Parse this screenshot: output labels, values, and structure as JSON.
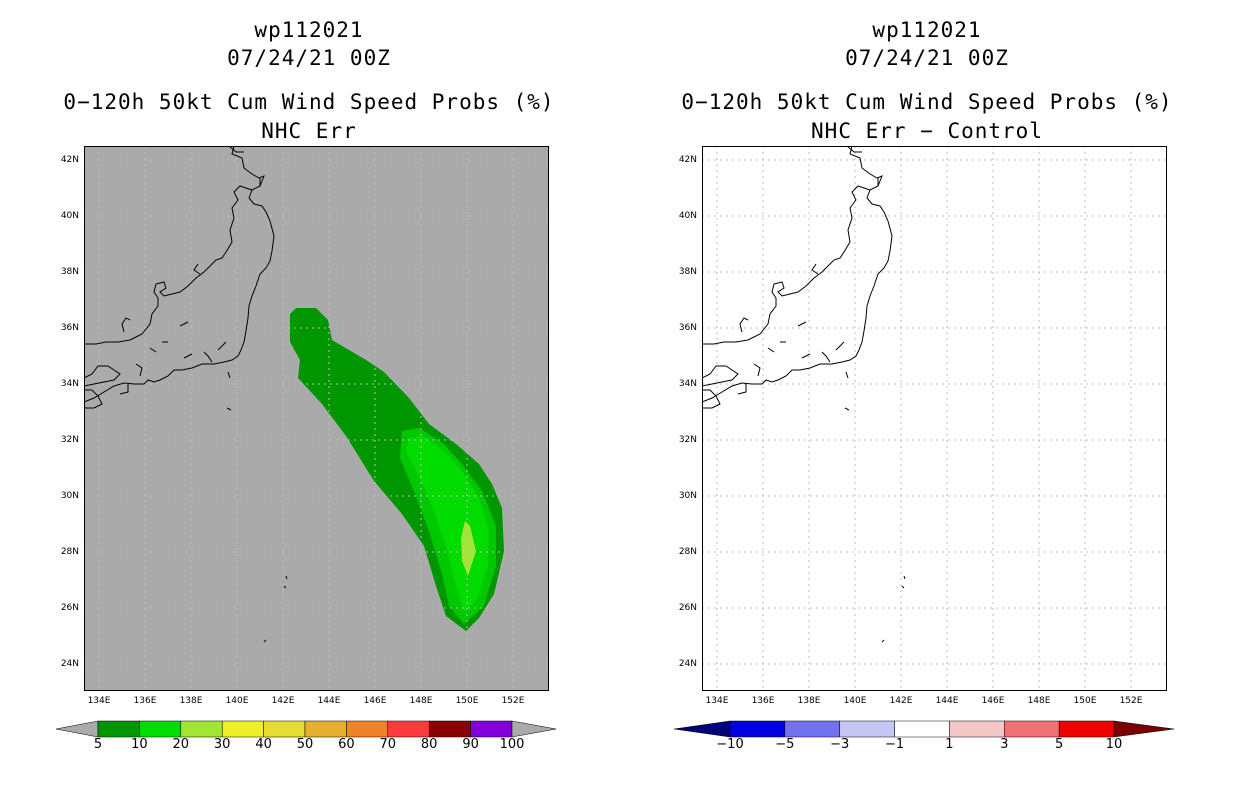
{
  "left_panel": {
    "title": "wp112021",
    "datetime": "07/24/21 00Z",
    "product": "0−120h 50kt Cum Wind Speed Probs (%)",
    "subtitle": "NHC Err",
    "background_color": "#aaaaaa",
    "colorbar": {
      "colors": [
        "#009600",
        "#00dc00",
        "#a0e632",
        "#f0f028",
        "#e6dc32",
        "#e6af2d",
        "#f08228",
        "#fa3c3c",
        "#8b0000",
        "#8200dc"
      ],
      "labels": [
        "5",
        "10",
        "20",
        "30",
        "40",
        "50",
        "60",
        "70",
        "80",
        "90",
        "100"
      ],
      "end_color": "#aaaaaa"
    }
  },
  "right_panel": {
    "title": "wp112021",
    "datetime": "07/24/21 00Z",
    "product": "0−120h 50kt Cum Wind Speed Probs (%)",
    "subtitle": "NHC Err − Control",
    "background_color": "#ffffff",
    "colorbar": {
      "colors": [
        "#0000e1",
        "#7272f0",
        "#c6c6f5",
        "#ffffff",
        "#f5c6c6",
        "#f07272",
        "#f00000"
      ],
      "labels": [
        "−10",
        "−5",
        "−3",
        "−1",
        "1",
        "3",
        "5",
        "10"
      ],
      "end_low_color": "#00007a",
      "end_high_color": "#7a0000"
    }
  },
  "map": {
    "lat_labels": [
      "42N",
      "40N",
      "38N",
      "36N",
      "34N",
      "32N",
      "30N",
      "28N",
      "26N",
      "24N"
    ],
    "lon_labels": [
      "134E",
      "136E",
      "138E",
      "140E",
      "142E",
      "144E",
      "146E",
      "148E",
      "150E",
      "152E"
    ]
  }
}
